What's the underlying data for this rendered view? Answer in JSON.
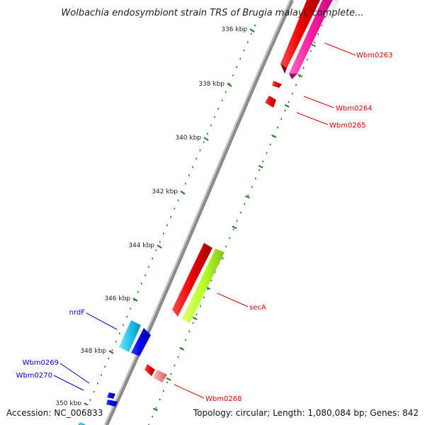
{
  "title": "Wolbachia endosymbiont strain TRS of Brugia malayi, complete...",
  "ruler": {
    "tick_color": "#1e7d1e",
    "labels": [
      "336 kbp",
      "338 kbp",
      "340 kbp",
      "342 kbp",
      "344 kbp",
      "346 kbp",
      "348 kbp",
      "350 kbp"
    ]
  },
  "genes": {
    "forward_color": "#dd0000",
    "reverse_color": "#0000cc",
    "labels": {
      "wbm0263": "Wbm0263",
      "wbm0264": "Wbm0264",
      "wbm0265": "Wbm0265",
      "seca": "secA",
      "wbm0268": "Wbm0268",
      "nrdf": "nrdF",
      "wbm0269": "Wbm0269",
      "wbm0270": "Wbm0270"
    }
  },
  "footer": {
    "accession": "Accession: NC_006833",
    "stats": "Topology: circular; Length: 1,080,084 bp; Genes: 842"
  }
}
